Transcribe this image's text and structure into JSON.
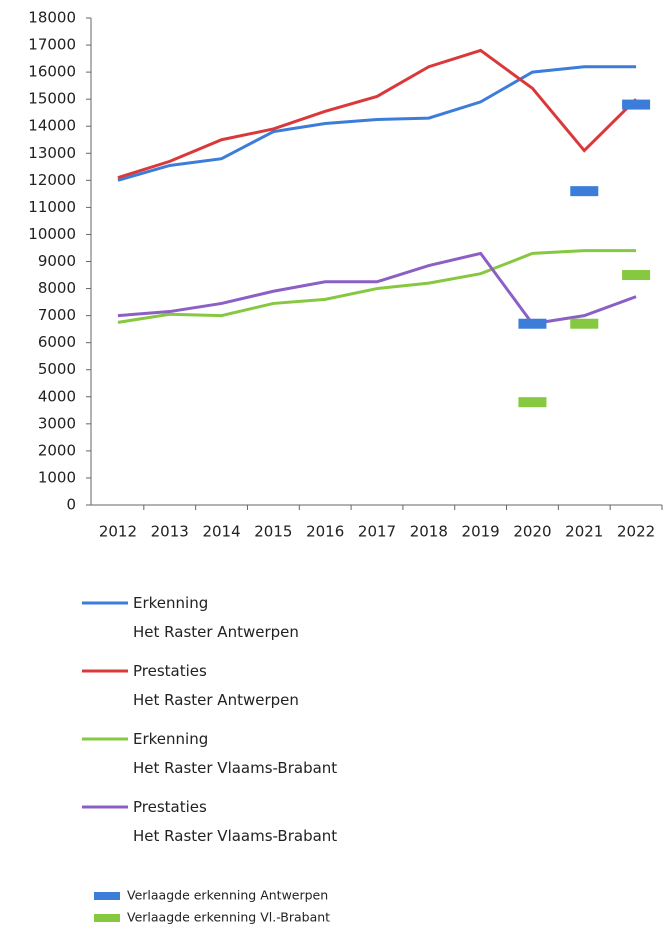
{
  "chart_data": {
    "type": "line",
    "categories": [
      "2012",
      "2013",
      "2014",
      "2015",
      "2016",
      "2017",
      "2018",
      "2019",
      "2020",
      "2021",
      "2022"
    ],
    "series": [
      {
        "name": "Erkenning\nHet Raster Antwerpen",
        "color": "#3b7dd8",
        "values": [
          12000,
          12550,
          12800,
          13800,
          14100,
          14250,
          14300,
          14900,
          16000,
          16200,
          16200
        ]
      },
      {
        "name": "Prestaties\nHet Raster Antwerpen",
        "color": "#d9393a",
        "values": [
          12100,
          12700,
          13500,
          13900,
          14550,
          15100,
          16200,
          16800,
          15400,
          13100,
          15000
        ]
      },
      {
        "name": "Erkenning\nHet Raster Vlaams-Brabant",
        "color": "#86c840",
        "values": [
          6750,
          7050,
          7000,
          7450,
          7600,
          8000,
          8200,
          8550,
          9300,
          9400,
          9400
        ]
      },
      {
        "name": "Prestaties\nHet Raster Vlaams-Brabant",
        "color": "#8c5fc4",
        "values": [
          7000,
          7150,
          7450,
          7900,
          8250,
          8250,
          8850,
          9300,
          6700,
          7000,
          7700
        ]
      },
      {
        "name": "Verlaagde erkenning Antwerpen",
        "color": "#3b7dd8",
        "marker": "dash",
        "values": [
          null,
          null,
          null,
          null,
          null,
          null,
          null,
          null,
          6700,
          11600,
          14800
        ]
      },
      {
        "name": "Verlaagde erkenning Vl.-Brabant",
        "color": "#86c840",
        "marker": "dash",
        "values": [
          null,
          null,
          null,
          null,
          null,
          null,
          null,
          null,
          3800,
          6700,
          8500
        ]
      }
    ],
    "ylim": [
      0,
      18000
    ],
    "yticks": [
      0,
      1000,
      2000,
      3000,
      4000,
      5000,
      6000,
      7000,
      8000,
      9000,
      10000,
      11000,
      12000,
      13000,
      14000,
      15000,
      16000,
      17000,
      18000
    ]
  }
}
